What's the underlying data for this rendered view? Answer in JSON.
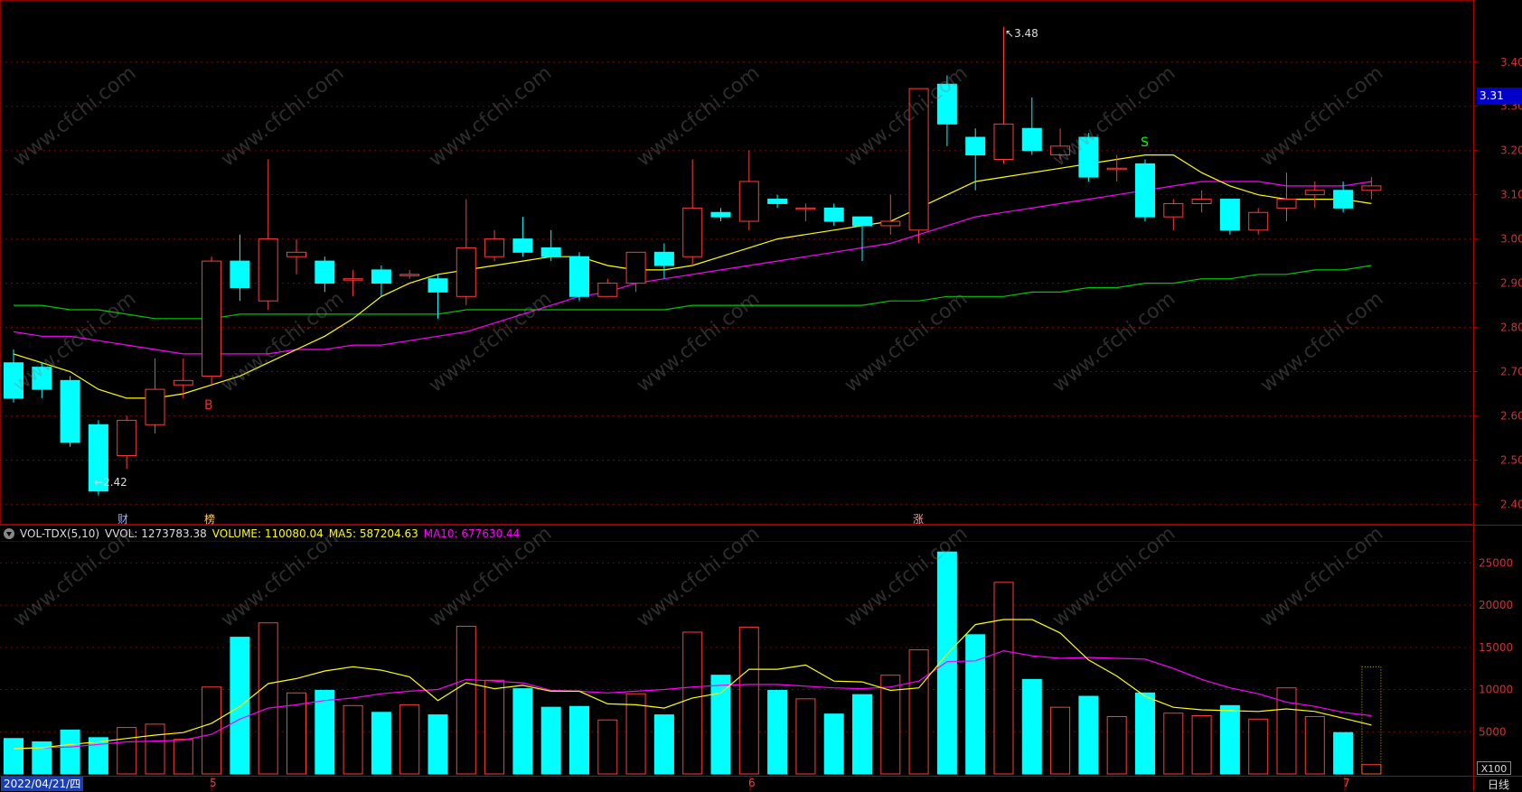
{
  "colors": {
    "background": "#000000",
    "up": "#ff3b3b",
    "down": "#00ffff",
    "ma5": "#ffff00",
    "ma10": "#ff00ff",
    "ma60": "#00c800",
    "grid": "#7a0000"
  },
  "price_axis": {
    "ticks": [
      "3.40",
      "3.30",
      "3.20",
      "3.10",
      "3.00",
      "2.90",
      "2.80",
      "2.70",
      "2.60",
      "2.50",
      "2.40"
    ],
    "current": "3.31"
  },
  "volume_axis": {
    "ticks": [
      "25000",
      "20000",
      "15000",
      "10000",
      "5000"
    ],
    "unit": "X100"
  },
  "period": "日线",
  "date_label": "2022/04/21/四",
  "months": [
    "5",
    "6",
    "7"
  ],
  "signals": {
    "buy": "B",
    "sell": "S"
  },
  "annotations": {
    "high": "3.48",
    "low": "2.42"
  },
  "events": [
    "财",
    "榜",
    "涨"
  ],
  "vol_legend": {
    "name": "VOL-TDX(5,10)",
    "vvol": "VVOL: 1273783.38",
    "volume": "VOLUME: 110080.04",
    "ma5": "MA5: 587204.63",
    "ma10": "MA10: 677630.44"
  },
  "watermark": "www.cfchi.com",
  "chart_data": [
    {
      "type": "candlestick",
      "ylim": [
        2.36,
        3.52
      ],
      "candles": [
        [
          2.72,
          2.64,
          2.75,
          2.63
        ],
        [
          2.71,
          2.66,
          2.72,
          2.64
        ],
        [
          2.68,
          2.54,
          2.69,
          2.53
        ],
        [
          2.58,
          2.43,
          2.59,
          2.42
        ],
        [
          2.51,
          2.59,
          2.6,
          2.48
        ],
        [
          2.58,
          2.66,
          2.73,
          2.56
        ],
        [
          2.67,
          2.68,
          2.73,
          2.64
        ],
        [
          2.69,
          2.95,
          2.96,
          2.67
        ],
        [
          2.95,
          2.89,
          3.01,
          2.86
        ],
        [
          2.86,
          3.0,
          3.18,
          2.84
        ],
        [
          2.96,
          2.97,
          3.0,
          2.92
        ],
        [
          2.95,
          2.9,
          2.96,
          2.88
        ],
        [
          2.91,
          2.91,
          2.93,
          2.87
        ],
        [
          2.93,
          2.9,
          2.94,
          2.87
        ],
        [
          2.92,
          2.92,
          2.93,
          2.91
        ],
        [
          2.91,
          2.88,
          2.92,
          2.82
        ],
        [
          2.87,
          2.98,
          3.09,
          2.85
        ],
        [
          2.96,
          3.0,
          3.02,
          2.95
        ],
        [
          3.0,
          2.97,
          3.05,
          2.96
        ],
        [
          2.98,
          2.96,
          3.02,
          2.95
        ],
        [
          2.96,
          2.87,
          2.97,
          2.86
        ],
        [
          2.87,
          2.9,
          2.91,
          2.87
        ],
        [
          2.9,
          2.97,
          2.97,
          2.88
        ],
        [
          2.97,
          2.94,
          2.99,
          2.91
        ],
        [
          2.96,
          3.07,
          3.18,
          2.94
        ],
        [
          3.06,
          3.05,
          3.07,
          3.04
        ],
        [
          3.04,
          3.13,
          3.2,
          3.02
        ],
        [
          3.09,
          3.08,
          3.1,
          3.07
        ],
        [
          3.07,
          3.07,
          3.08,
          3.04
        ],
        [
          3.07,
          3.04,
          3.08,
          3.03
        ],
        [
          3.05,
          3.03,
          3.05,
          2.95
        ],
        [
          3.03,
          3.04,
          3.1,
          3.01
        ],
        [
          3.02,
          3.34,
          3.34,
          2.99
        ],
        [
          3.35,
          3.26,
          3.37,
          3.21
        ],
        [
          3.23,
          3.19,
          3.25,
          3.11
        ],
        [
          3.18,
          3.26,
          3.48,
          3.17
        ],
        [
          3.25,
          3.2,
          3.32,
          3.19
        ],
        [
          3.19,
          3.21,
          3.25,
          3.18
        ],
        [
          3.23,
          3.14,
          3.24,
          3.13
        ],
        [
          3.16,
          3.16,
          3.19,
          3.13
        ],
        [
          3.17,
          3.05,
          3.18,
          3.04
        ],
        [
          3.05,
          3.08,
          3.09,
          3.02
        ],
        [
          3.08,
          3.09,
          3.11,
          3.06
        ],
        [
          3.09,
          3.02,
          3.09,
          3.01
        ],
        [
          3.02,
          3.06,
          3.07,
          3.01
        ],
        [
          3.07,
          3.09,
          3.15,
          3.04
        ],
        [
          3.1,
          3.11,
          3.13,
          3.07
        ],
        [
          3.11,
          3.07,
          3.13,
          3.06
        ],
        [
          3.11,
          3.12,
          3.14,
          3.09
        ]
      ],
      "ma5": [
        2.74,
        2.72,
        2.7,
        2.66,
        2.64,
        2.64,
        2.65,
        2.67,
        2.69,
        2.72,
        2.75,
        2.78,
        2.82,
        2.87,
        2.9,
        2.92,
        2.93,
        2.94,
        2.95,
        2.96,
        2.96,
        2.94,
        2.93,
        2.93,
        2.94,
        2.96,
        2.98,
        3.0,
        3.01,
        3.02,
        3.03,
        3.04,
        3.07,
        3.1,
        3.13,
        3.14,
        3.15,
        3.16,
        3.17,
        3.18,
        3.19,
        3.19,
        3.15,
        3.12,
        3.1,
        3.09,
        3.09,
        3.09,
        3.08
      ],
      "ma10": [
        2.79,
        2.78,
        2.78,
        2.77,
        2.76,
        2.75,
        2.74,
        2.74,
        2.74,
        2.74,
        2.75,
        2.75,
        2.76,
        2.76,
        2.77,
        2.78,
        2.79,
        2.81,
        2.83,
        2.85,
        2.87,
        2.88,
        2.9,
        2.91,
        2.92,
        2.93,
        2.94,
        2.95,
        2.96,
        2.97,
        2.98,
        2.99,
        3.01,
        3.03,
        3.05,
        3.06,
        3.07,
        3.08,
        3.09,
        3.1,
        3.11,
        3.12,
        3.13,
        3.13,
        3.13,
        3.12,
        3.12,
        3.12,
        3.13
      ],
      "ma60": [
        2.85,
        2.85,
        2.84,
        2.84,
        2.83,
        2.82,
        2.82,
        2.82,
        2.83,
        2.83,
        2.83,
        2.83,
        2.83,
        2.83,
        2.83,
        2.83,
        2.84,
        2.84,
        2.84,
        2.84,
        2.84,
        2.84,
        2.84,
        2.84,
        2.85,
        2.85,
        2.85,
        2.85,
        2.85,
        2.85,
        2.85,
        2.86,
        2.86,
        2.87,
        2.87,
        2.87,
        2.88,
        2.88,
        2.89,
        2.89,
        2.9,
        2.9,
        2.91,
        2.91,
        2.92,
        2.92,
        2.93,
        2.93,
        2.94
      ]
    },
    {
      "type": "bar",
      "ylim": [
        0,
        27500
      ],
      "volumes": [
        4200,
        3800,
        5200,
        4300,
        5500,
        5900,
        4100,
        10300,
        16200,
        17900,
        9600,
        9900,
        8100,
        7300,
        8200,
        7000,
        17500,
        11100,
        10100,
        7900,
        8000,
        6400,
        9500,
        7000,
        16800,
        11700,
        17400,
        9900,
        8900,
        7100,
        9400,
        11700,
        14700,
        26300,
        16500,
        22700,
        11200,
        7900,
        9200,
        6800,
        9600,
        7200,
        6900,
        8100,
        6500,
        10200,
        6800,
        4900,
        1100
      ],
      "vol_ma5": [
        3000,
        3100,
        3500,
        3800,
        4200,
        4600,
        4900,
        6000,
        8000,
        10700,
        11300,
        12200,
        12700,
        12300,
        11500,
        8700,
        10800,
        10100,
        10500,
        9800,
        9800,
        8300,
        8200,
        7800,
        9000,
        9600,
        12400,
        12400,
        12900,
        11000,
        10900,
        9900,
        10200,
        14200,
        17700,
        18300,
        18300,
        16700,
        13500,
        11600,
        9200,
        7900,
        7600,
        7500,
        7400,
        7700,
        7400,
        6600,
        5800
      ],
      "vol_ma10": [
        3000,
        3100,
        3200,
        3500,
        3800,
        3900,
        4000,
        4700,
        6500,
        7800,
        8200,
        8700,
        9000,
        9500,
        9800,
        10000,
        11200,
        11000,
        10800,
        9900,
        9800,
        9600,
        9800,
        10000,
        10300,
        10500,
        10600,
        10600,
        10400,
        10200,
        10100,
        10300,
        11000,
        13300,
        13400,
        14600,
        14000,
        13700,
        13800,
        13700,
        13600,
        12500,
        11200,
        10200,
        9500,
        8500,
        8000,
        7300,
        6900
      ]
    }
  ]
}
